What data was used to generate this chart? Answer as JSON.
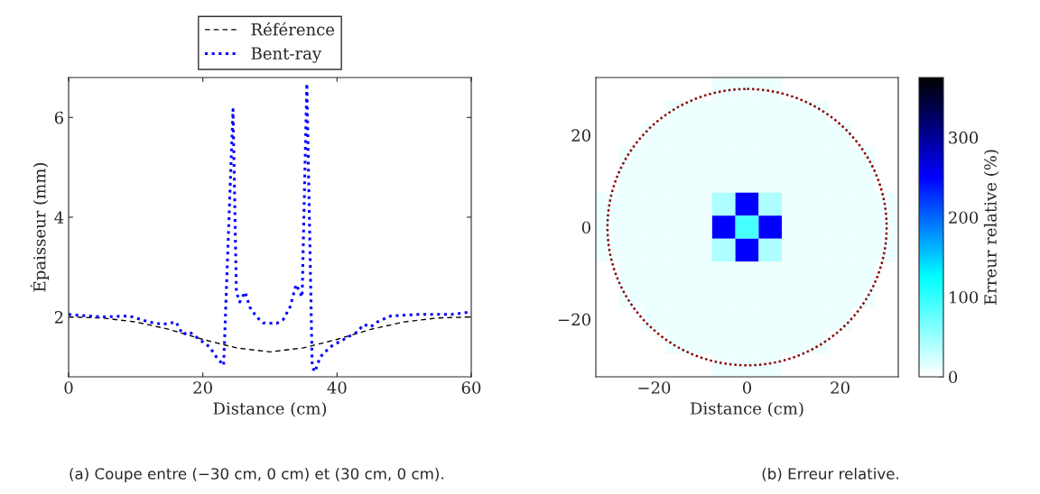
{
  "chart_data": [
    {
      "type": "line",
      "xlabel": "Distance (cm)",
      "ylabel": "Épaisseur (mm)",
      "xlim": [
        0,
        60
      ],
      "ylim": [
        0.8,
        6.8
      ],
      "xticks": [
        0,
        20,
        40,
        60
      ],
      "yticks": [
        2,
        4,
        6
      ],
      "legend": "top",
      "grid": false,
      "annotations": [
        "(a) Coupe entre (−30 cm, 0 cm) et (30 cm, 0 cm)."
      ],
      "series": [
        {
          "name": "Référence",
          "color": "#000000",
          "line_style": "dashed",
          "x": [
            0,
            5,
            10,
            15,
            20,
            25,
            30,
            35,
            40,
            45,
            50,
            55,
            60
          ],
          "values": [
            2.0,
            1.98,
            1.9,
            1.75,
            1.55,
            1.38,
            1.3,
            1.38,
            1.55,
            1.75,
            1.9,
            1.98,
            2.0
          ]
        },
        {
          "name": "Bent-ray",
          "color": "#0000ff",
          "line_style": "dotted",
          "x": [
            0,
            5,
            9,
            12,
            14,
            16,
            17,
            18,
            19,
            21,
            22,
            23.1,
            24.5,
            25,
            25.5,
            26.3,
            27,
            28,
            29,
            31,
            32,
            33,
            33.9,
            34.8,
            35.5,
            36.3,
            36.7,
            37.5,
            39,
            41,
            43,
            44,
            45,
            46,
            48,
            52,
            57,
            60
          ],
          "values": [
            2.05,
            2.0,
            2.02,
            1.9,
            1.85,
            1.9,
            1.65,
            1.7,
            1.6,
            1.4,
            1.2,
            1.03,
            6.16,
            2.5,
            2.3,
            2.5,
            2.2,
            2.0,
            1.88,
            1.87,
            1.95,
            2.2,
            2.65,
            2.4,
            6.68,
            1.0,
            0.9,
            1.2,
            1.4,
            1.55,
            1.7,
            1.85,
            1.8,
            1.9,
            2.02,
            2.05,
            2.05,
            2.1
          ]
        }
      ]
    },
    {
      "type": "heatmap",
      "xlabel": "Distance (cm)",
      "clabel": "Erreur relative (%)",
      "clim": [
        0,
        375
      ],
      "cticks": [
        0,
        100,
        200,
        300
      ],
      "annotations": [
        "(b) Erreur relative."
      ],
      "categories": [
        null,
        null,
        "−20",
        null,
        null,
        null,
        "0",
        null,
        null,
        null,
        "20",
        null,
        null
      ],
      "y_categories": [
        null,
        null,
        "20",
        null,
        null,
        null,
        "0",
        null,
        null,
        null,
        "−20",
        null,
        null
      ],
      "cells": [
        [
          0,
          0,
          0,
          0,
          0,
          10,
          10,
          10,
          0,
          0,
          0,
          0,
          0
        ],
        [
          0,
          0,
          0,
          10,
          10,
          10,
          10,
          10,
          10,
          10,
          0,
          0,
          0
        ],
        [
          0,
          0,
          10,
          10,
          10,
          10,
          10,
          10,
          10,
          10,
          10,
          0,
          0
        ],
        [
          0,
          10,
          10,
          10,
          10,
          10,
          10,
          10,
          10,
          10,
          10,
          10,
          0
        ],
        [
          0,
          10,
          10,
          10,
          10,
          10,
          10,
          10,
          10,
          10,
          10,
          10,
          0
        ],
        [
          10,
          10,
          10,
          10,
          10,
          40,
          250,
          40,
          10,
          10,
          10,
          10,
          10
        ],
        [
          10,
          10,
          10,
          10,
          10,
          250,
          90,
          250,
          10,
          10,
          10,
          10,
          10
        ],
        [
          10,
          10,
          10,
          10,
          10,
          40,
          250,
          40,
          10,
          10,
          10,
          10,
          10
        ],
        [
          0,
          10,
          10,
          10,
          10,
          10,
          10,
          10,
          10,
          10,
          10,
          10,
          0
        ],
        [
          0,
          10,
          10,
          10,
          10,
          10,
          10,
          10,
          10,
          10,
          10,
          10,
          0
        ],
        [
          0,
          0,
          10,
          10,
          10,
          10,
          10,
          10,
          10,
          10,
          10,
          0,
          0
        ],
        [
          0,
          0,
          0,
          10,
          10,
          10,
          10,
          10,
          10,
          10,
          0,
          0,
          0
        ],
        [
          0,
          0,
          0,
          0,
          0,
          10,
          10,
          10,
          0,
          0,
          0,
          0,
          0
        ]
      ]
    }
  ]
}
